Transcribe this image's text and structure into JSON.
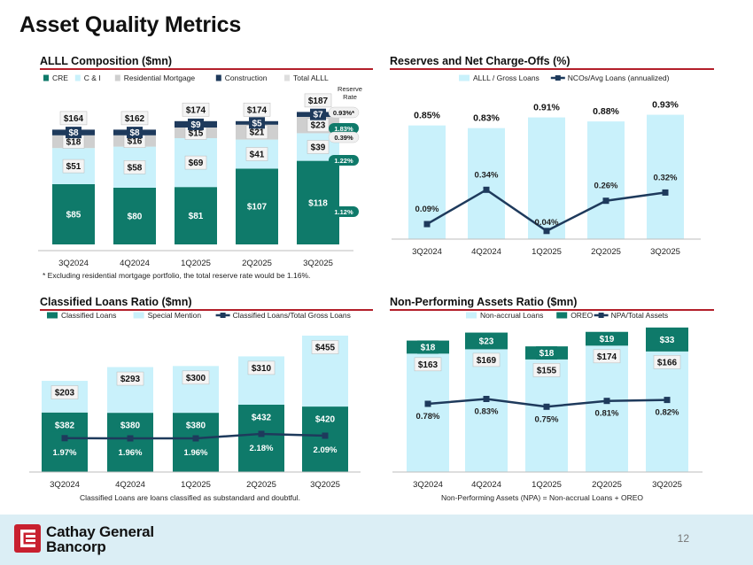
{
  "title": "Asset Quality Metrics",
  "page_number": "12",
  "company": {
    "line1": "Cathay General",
    "line2": "Bancorp"
  },
  "colors": {
    "dark_teal": "#0f7a6a",
    "light_blue": "#c9f1fb",
    "grey": "#cfcfcf",
    "navy": "#1e3a5c",
    "pale": "#e2edf3",
    "accent_red": "#b31f2a",
    "footer_bg": "#dbeef5"
  },
  "notes": {
    "allll_footnote": "* Excluding residential mortgage portfolio, the total reserve rate would be 1.16%.",
    "classified_footnote": "Classified Loans are loans classified as substandard and doubtful.",
    "npa_footnote": "Non-Performing Assets (NPA) = Non-accrual Loans + OREO"
  },
  "chart_data": [
    {
      "id": "allll",
      "type": "bar",
      "title": "ALLL Composition ($mn)",
      "categories": [
        "3Q2024",
        "4Q2024",
        "1Q2025",
        "2Q2025",
        "3Q2025"
      ],
      "series": [
        {
          "name": "CRE",
          "values": [
            85,
            80,
            81,
            107,
            118
          ],
          "labels": [
            "$85",
            "$80",
            "$81",
            "$107",
            "$118"
          ]
        },
        {
          "name": "C & I",
          "values": [
            51,
            58,
            69,
            41,
            39
          ],
          "labels": [
            "$51",
            "$58",
            "$69",
            "$41",
            "$39"
          ]
        },
        {
          "name": "Residential Mortgage",
          "values": [
            18,
            16,
            15,
            21,
            23
          ],
          "labels": [
            "$18",
            "$16",
            "$15",
            "$21",
            "$23"
          ]
        },
        {
          "name": "Construction",
          "values": [
            8,
            8,
            9,
            5,
            7
          ],
          "labels": [
            "$8",
            "$8",
            "$9",
            "$5",
            "$7"
          ]
        },
        {
          "name": "Total ALLL",
          "values": [
            164,
            162,
            174,
            174,
            187
          ],
          "labels": [
            "$164",
            "$162",
            "$174",
            "$174",
            "$187"
          ]
        }
      ],
      "reserve_rate_header": "Reserve Rate",
      "reserve_rates": [
        {
          "segment": "Total ALLL",
          "label": "0.93%*"
        },
        {
          "segment": "Construction",
          "label": "1.83%"
        },
        {
          "segment": "Residential Mortgage",
          "label": "0.39%"
        },
        {
          "segment": "C & I",
          "label": "1.22%"
        },
        {
          "segment": "CRE",
          "label": "1.12%"
        }
      ],
      "stacked": true
    },
    {
      "id": "reserves",
      "type": "bar",
      "title": "Reserves and Net Charge-Offs (%)",
      "categories": [
        "3Q2024",
        "4Q2024",
        "1Q2025",
        "2Q2025",
        "3Q2025"
      ],
      "series": [
        {
          "name": "ALLL / Gross Loans",
          "type": "bar",
          "values": [
            0.85,
            0.83,
            0.91,
            0.88,
            0.93
          ],
          "labels": [
            "0.85%",
            "0.83%",
            "0.91%",
            "0.88%",
            "0.93%"
          ]
        },
        {
          "name": "NCOs/Avg Loans (annualized)",
          "type": "line",
          "values": [
            0.09,
            0.34,
            0.04,
            0.26,
            0.32
          ],
          "labels": [
            "0.09%",
            "0.34%",
            "0.04%",
            "0.26%",
            "0.32%"
          ]
        }
      ]
    },
    {
      "id": "classified",
      "type": "bar",
      "title": "Classified Loans Ratio ($mn)",
      "categories": [
        "3Q2024",
        "4Q2024",
        "1Q2025",
        "2Q2025",
        "3Q2025"
      ],
      "series": [
        {
          "name": "Classified Loans",
          "type": "bar",
          "values": [
            382,
            380,
            380,
            432,
            420
          ],
          "labels": [
            "$382",
            "$380",
            "$380",
            "$432",
            "$420"
          ]
        },
        {
          "name": "Special Mention",
          "type": "bar",
          "values": [
            203,
            293,
            300,
            310,
            455
          ],
          "labels": [
            "$203",
            "$293",
            "$300",
            "$310",
            "$455"
          ]
        },
        {
          "name": "Classified Loans/Total Gross Loans",
          "type": "line",
          "values": [
            1.97,
            1.96,
            1.96,
            2.18,
            2.09
          ],
          "labels": [
            "1.97%",
            "1.96%",
            "1.96%",
            "2.18%",
            "2.09%"
          ]
        }
      ],
      "stacked": true
    },
    {
      "id": "npa",
      "type": "bar",
      "title": "Non-Performing Assets Ratio ($mn)",
      "categories": [
        "3Q2024",
        "4Q2024",
        "1Q2025",
        "2Q2025",
        "3Q2025"
      ],
      "series": [
        {
          "name": "Non-accrual Loans",
          "type": "bar",
          "values": [
            163,
            169,
            155,
            174,
            166
          ],
          "labels": [
            "$163",
            "$169",
            "$155",
            "$174",
            "$166"
          ]
        },
        {
          "name": "OREO",
          "type": "bar",
          "values": [
            18,
            23,
            18,
            19,
            33
          ],
          "labels": [
            "$18",
            "$23",
            "$18",
            "$19",
            "$33"
          ]
        },
        {
          "name": "NPA/Total Assets",
          "type": "line",
          "values": [
            0.78,
            0.83,
            0.75,
            0.81,
            0.82
          ],
          "labels": [
            "0.78%",
            "0.83%",
            "0.75%",
            "0.81%",
            "0.82%"
          ]
        }
      ],
      "stacked": true
    }
  ]
}
